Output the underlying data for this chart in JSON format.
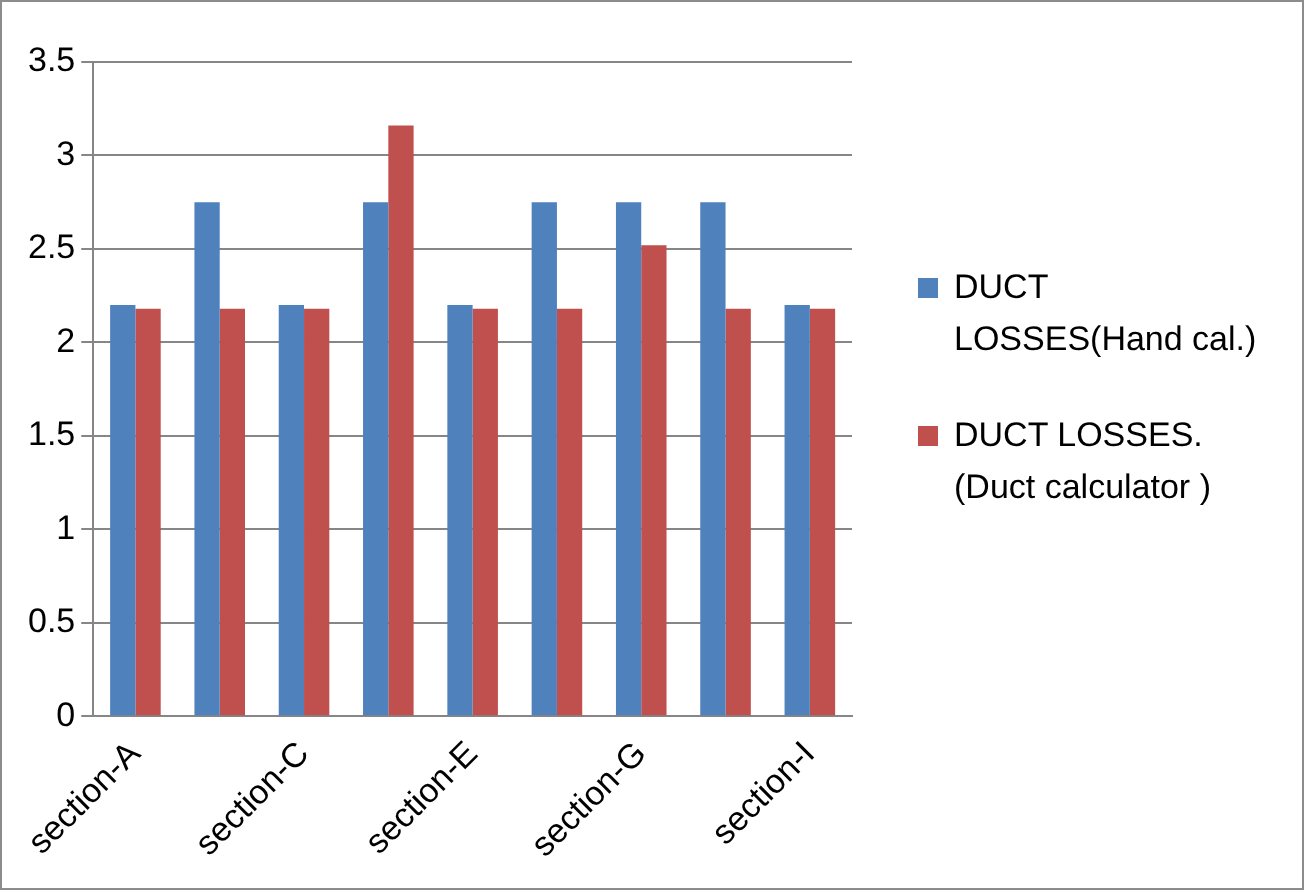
{
  "chart_data": {
    "type": "bar",
    "categories": [
      "section-A",
      null,
      "section-C",
      null,
      "section-E",
      null,
      "section-G",
      null,
      "section-I"
    ],
    "series": [
      {
        "name": "DUCT LOSSES(Hand cal.)",
        "color": "#4f81bd",
        "values": [
          2.2,
          2.75,
          2.2,
          2.75,
          2.2,
          2.75,
          2.75,
          2.75,
          2.2
        ]
      },
      {
        "name": "DUCT LOSSES.(Duct calculator )",
        "color": "#c0504d",
        "values": [
          2.18,
          2.18,
          2.18,
          3.16,
          2.18,
          2.18,
          2.52,
          2.18,
          2.18
        ]
      }
    ],
    "ylim": [
      0,
      3.5
    ],
    "yticks": [
      0,
      0.5,
      1,
      1.5,
      2,
      2.5,
      3,
      3.5
    ],
    "grid": "y",
    "legend": "right"
  }
}
